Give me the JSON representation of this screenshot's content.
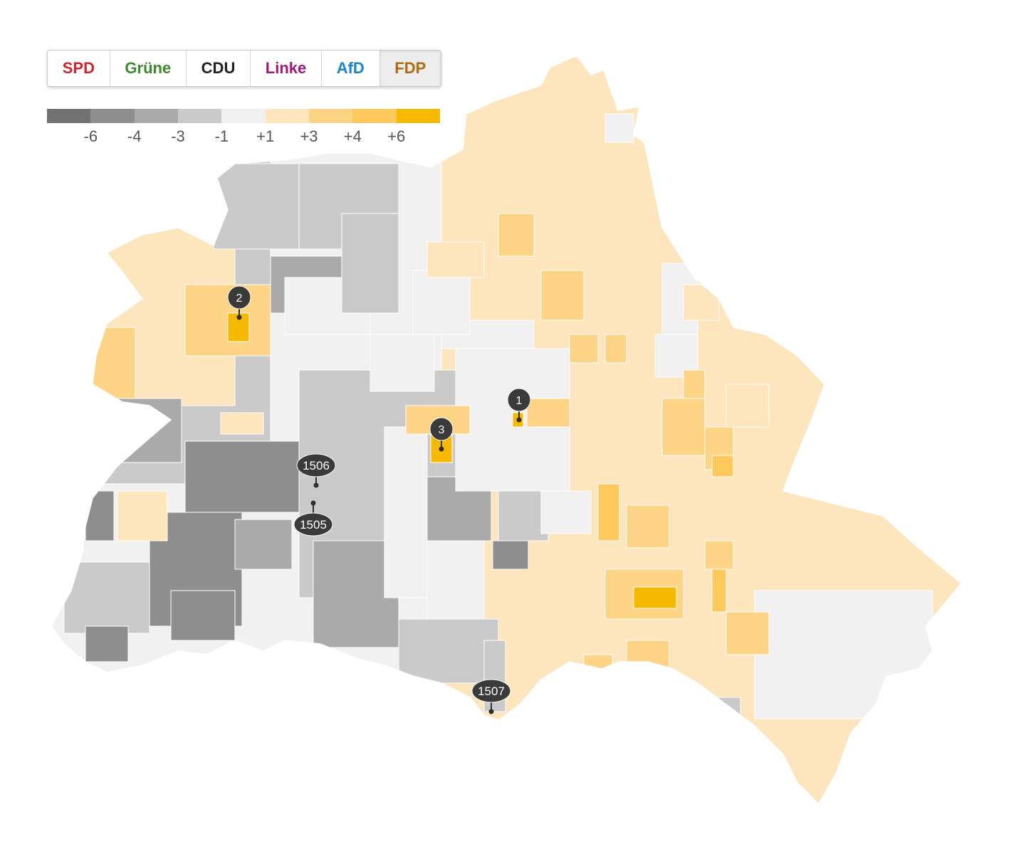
{
  "party_tabs": [
    {
      "label": "SPD",
      "color": "#d2242a"
    },
    {
      "label": "Grüne",
      "color": "#3c8a2e"
    },
    {
      "label": "CDU",
      "color": "#222222"
    },
    {
      "label": "Linke",
      "color": "#a0197a"
    },
    {
      "label": "AfD",
      "color": "#1b86c5"
    },
    {
      "label": "FDP",
      "color": "#b36a0c",
      "selected": true
    }
  ],
  "legend": {
    "colors": [
      "#727272",
      "#8e8e8e",
      "#aaaaaa",
      "#cacaca",
      "#f1f1f1",
      "#fde5bd",
      "#fdd486",
      "#fdc95c",
      "#f6b900"
    ],
    "ticks": [
      "-6",
      "-4",
      "-3",
      "-1",
      "+1",
      "+3",
      "+4",
      "+6"
    ]
  },
  "map": {
    "markers": [
      {
        "label": "1",
        "shape": "circle"
      },
      {
        "label": "2",
        "shape": "circle"
      },
      {
        "label": "3",
        "shape": "circle"
      },
      {
        "label": "1506",
        "shape": "pill"
      },
      {
        "label": "1505",
        "shape": "pill"
      },
      {
        "label": "1507",
        "shape": "pill"
      }
    ]
  }
}
